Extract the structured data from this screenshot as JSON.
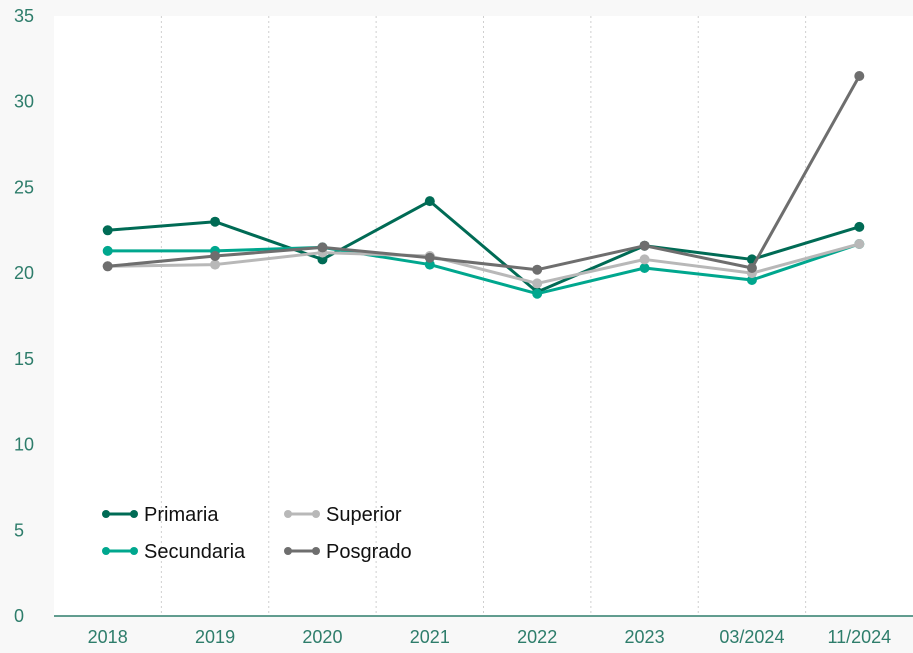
{
  "chart_data": {
    "type": "line",
    "title": "",
    "xlabel": "",
    "ylabel": "",
    "categories": [
      "2018",
      "2019",
      "2020",
      "2021",
      "2022",
      "2023",
      "03/2024",
      "11/2024"
    ],
    "ylim": [
      0,
      35
    ],
    "yticks": [
      "0",
      "5",
      "10",
      "15",
      "20",
      "25",
      "30",
      "35"
    ],
    "grid": "vertical dotted",
    "legend_position": "bottom-left",
    "series": [
      {
        "name": "Primaria",
        "color": "#006b55",
        "values": [
          22.5,
          23.0,
          20.8,
          24.2,
          18.9,
          21.6,
          20.8,
          22.7
        ]
      },
      {
        "name": "Secundaria",
        "color": "#00a78e",
        "values": [
          21.3,
          21.3,
          21.5,
          20.5,
          18.8,
          20.3,
          19.6,
          21.7
        ]
      },
      {
        "name": "Superior",
        "color": "#b8b8b8",
        "values": [
          20.4,
          20.5,
          21.2,
          21.0,
          19.4,
          20.8,
          20.0,
          21.7
        ]
      },
      {
        "name": "Posgrado",
        "color": "#6e6e6e",
        "values": [
          20.4,
          21.0,
          21.5,
          20.9,
          20.2,
          21.6,
          20.3,
          31.5
        ]
      }
    ],
    "axis_color": "#2e7d6b",
    "tick_color": "#2e7d6b"
  }
}
